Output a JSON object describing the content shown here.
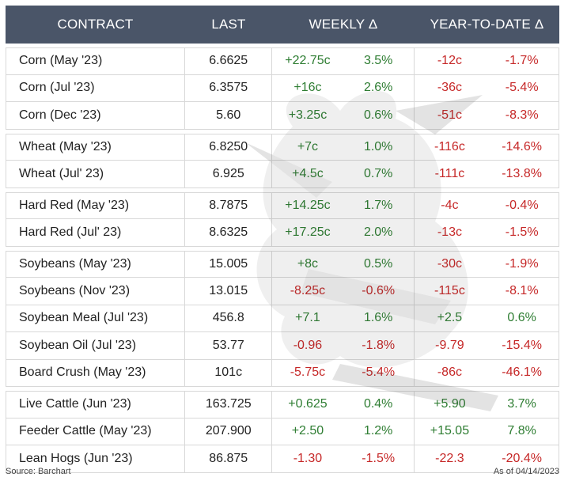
{
  "header": {
    "contract": "CONTRACT",
    "last": "LAST",
    "weekly": "WEEKLY Δ",
    "ytd": "YEAR-TO-DATE Δ"
  },
  "groups": [
    [
      {
        "contract": "Corn (May '23)",
        "last": "6.6625",
        "wk_chg": "+22.75c",
        "wk_pct": "3.5%",
        "ytd_chg": "-12c",
        "ytd_pct": "-1.7%"
      },
      {
        "contract": "Corn (Jul '23)",
        "last": "6.3575",
        "wk_chg": "+16c",
        "wk_pct": "2.6%",
        "ytd_chg": "-36c",
        "ytd_pct": "-5.4%"
      },
      {
        "contract": "Corn (Dec '23)",
        "last": "5.60",
        "wk_chg": "+3.25c",
        "wk_pct": "0.6%",
        "ytd_chg": "-51c",
        "ytd_pct": "-8.3%"
      }
    ],
    [
      {
        "contract": "Wheat (May '23)",
        "last": "6.8250",
        "wk_chg": "+7c",
        "wk_pct": "1.0%",
        "ytd_chg": "-116c",
        "ytd_pct": "-14.6%"
      },
      {
        "contract": "Wheat (Jul' 23)",
        "last": "6.925",
        "wk_chg": "+4.5c",
        "wk_pct": "0.7%",
        "ytd_chg": "-111c",
        "ytd_pct": "-13.8%"
      }
    ],
    [
      {
        "contract": "Hard Red (May '23)",
        "last": "8.7875",
        "wk_chg": "+14.25c",
        "wk_pct": "1.7%",
        "ytd_chg": "-4c",
        "ytd_pct": "-0.4%"
      },
      {
        "contract": "Hard Red (Jul' 23)",
        "last": "8.6325",
        "wk_chg": "+17.25c",
        "wk_pct": "2.0%",
        "ytd_chg": "-13c",
        "ytd_pct": "-1.5%"
      }
    ],
    [
      {
        "contract": "Soybeans (May '23)",
        "last": "15.005",
        "wk_chg": "+8c",
        "wk_pct": "0.5%",
        "ytd_chg": "-30c",
        "ytd_pct": "-1.9%"
      },
      {
        "contract": "Soybeans (Nov '23)",
        "last": "13.015",
        "wk_chg": "-8.25c",
        "wk_pct": "-0.6%",
        "ytd_chg": "-115c",
        "ytd_pct": "-8.1%"
      },
      {
        "contract": "Soybean Meal (Jul '23)",
        "last": "456.8",
        "wk_chg": "+7.1",
        "wk_pct": "1.6%",
        "ytd_chg": "+2.5",
        "ytd_pct": "0.6%"
      },
      {
        "contract": "Soybean Oil (Jul '23)",
        "last": "53.77",
        "wk_chg": "-0.96",
        "wk_pct": "-1.8%",
        "ytd_chg": "-9.79",
        "ytd_pct": "-15.4%"
      },
      {
        "contract": "Board Crush (May '23)",
        "last": "101c",
        "wk_chg": "-5.75c",
        "wk_pct": "-5.4%",
        "ytd_chg": "-86c",
        "ytd_pct": "-46.1%"
      }
    ],
    [
      {
        "contract": "Live Cattle (Jun '23)",
        "last": "163.725",
        "wk_chg": "+0.625",
        "wk_pct": "0.4%",
        "ytd_chg": "+5.90",
        "ytd_pct": "3.7%"
      },
      {
        "contract": "Feeder Cattle (May '23)",
        "last": "207.900",
        "wk_chg": "+2.50",
        "wk_pct": "1.2%",
        "ytd_chg": "+15.05",
        "ytd_pct": "7.8%"
      },
      {
        "contract": "Lean Hogs (Jun '23)",
        "last": "86.875",
        "wk_chg": "-1.30",
        "wk_pct": "-1.5%",
        "ytd_chg": "-22.3",
        "ytd_pct": "-20.4%"
      }
    ]
  ],
  "footer": {
    "source": "Source: Barchart",
    "asof": "As of 04/14/2023"
  },
  "colors": {
    "header_bg": "#4a5568",
    "positive": "#2e7d32",
    "negative": "#c62828"
  }
}
